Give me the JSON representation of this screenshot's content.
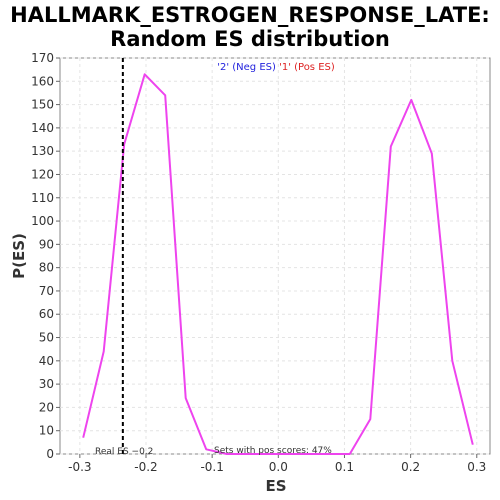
{
  "chart_data": {
    "type": "line",
    "title_line1": "HALLMARK_ESTROGEN_RESPONSE_LATE:",
    "title_line2": "Random ES distribution",
    "xlabel": "ES",
    "ylabel": "P(ES)",
    "xlim": [
      -0.33,
      0.32
    ],
    "ylim": [
      0,
      170
    ],
    "x_ticks": [
      -0.3,
      -0.2,
      -0.1,
      0.0,
      0.1,
      0.2,
      0.3
    ],
    "x_tick_labels": [
      "-0.3",
      "-0.2",
      "-0.1",
      "0.0",
      "0.1",
      "0.2",
      "0.3"
    ],
    "y_ticks": [
      0,
      10,
      20,
      30,
      40,
      50,
      60,
      70,
      80,
      90,
      100,
      110,
      120,
      130,
      140,
      150,
      160,
      170
    ],
    "y_tick_labels": [
      "0",
      "10",
      "20",
      "30",
      "40",
      "50",
      "60",
      "70",
      "80",
      "90",
      "100",
      "110",
      "120",
      "130",
      "140",
      "150",
      "160",
      "170"
    ],
    "grid": true,
    "series": [
      {
        "color": "#ee44ee",
        "x": [
          -0.295,
          -0.264,
          -0.233,
          -0.202,
          -0.171,
          -0.14,
          -0.109,
          -0.078,
          -0.047,
          -0.016,
          0.015,
          0.046,
          0.077,
          0.108,
          0.139,
          0.17,
          0.201,
          0.232,
          0.263,
          0.294
        ],
        "y": [
          7,
          44,
          133,
          163,
          154,
          24,
          2,
          0,
          0,
          0,
          0,
          0,
          0,
          0,
          15,
          132,
          152,
          129,
          40,
          4
        ]
      }
    ],
    "real_es": {
      "x": -0.235,
      "label": "Real ES −0.2",
      "color": "#000000"
    },
    "legend": {
      "placement": "top-center",
      "text_neg": "'2' (Neg ES)",
      "text_pos": "'1' (Pos ES)",
      "color_neg": "#2222dd",
      "color_pos": "#dd2222"
    },
    "annotation": "Sets with pos scores: 47%"
  }
}
